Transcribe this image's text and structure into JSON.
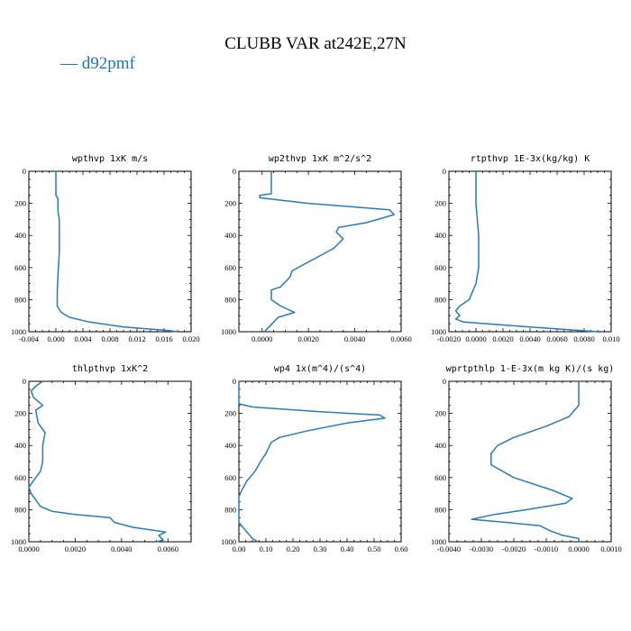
{
  "header": {
    "title": "CLUBB VAR at242E,27N",
    "legend_label": "— d92pmf",
    "legend_color": "#2a7ab5"
  },
  "chart_data": [
    {
      "type": "line",
      "title": "wpthvp  1xK m/s",
      "series": [
        {
          "name": "d92pmf",
          "points": [
            [
              0,
              0
            ],
            [
              0,
              150
            ],
            [
              0.0003,
              170
            ],
            [
              0.0003,
              250
            ],
            [
              0.0005,
              300
            ],
            [
              0.0005,
              400
            ],
            [
              0.0005,
              500
            ],
            [
              0.0003,
              650
            ],
            [
              0.0002,
              750
            ],
            [
              0.0002,
              840
            ],
            [
              0.0008,
              880
            ],
            [
              0.002,
              910
            ],
            [
              0.005,
              940
            ],
            [
              0.01,
              970
            ],
            [
              0.016,
              990
            ],
            [
              0.018,
              1000
            ]
          ]
        }
      ],
      "xlim": [
        -0.004,
        0.02
      ],
      "ylim": [
        1000,
        0
      ],
      "xticks": [
        -0.004,
        0.0,
        0.004,
        0.008,
        0.012,
        0.016,
        0.02
      ],
      "xtick_labels": [
        "-0.004",
        "0.000",
        "0.004",
        "0.008",
        "0.012",
        "0.016",
        "0.020"
      ],
      "yticks": [
        0,
        200,
        400,
        600,
        800,
        1000
      ],
      "ytick_labels": [
        "0",
        "200",
        "400",
        "600",
        "800",
        "1000"
      ]
    },
    {
      "type": "line",
      "title": "wp2thvp  1xK m^2/s^2",
      "series": [
        {
          "name": "d92pmf",
          "points": [
            [
              0.0004,
              0
            ],
            [
              0.0004,
              140
            ],
            [
              -0.0001,
              150
            ],
            [
              -0.0001,
              165
            ],
            [
              0.002,
              200
            ],
            [
              0.0055,
              240
            ],
            [
              0.0057,
              270
            ],
            [
              0.0045,
              320
            ],
            [
              0.0033,
              350
            ],
            [
              0.0032,
              380
            ],
            [
              0.0035,
              420
            ],
            [
              0.0031,
              480
            ],
            [
              0.0022,
              550
            ],
            [
              0.0013,
              620
            ],
            [
              0.0012,
              660
            ],
            [
              0.0008,
              720
            ],
            [
              0.0004,
              740
            ],
            [
              0.0004,
              800
            ],
            [
              0.0008,
              840
            ],
            [
              0.0014,
              880
            ],
            [
              0.0007,
              910
            ],
            [
              0.0003,
              970
            ],
            [
              0.0001,
              1000
            ]
          ]
        }
      ],
      "xlim": [
        -0.001,
        0.006
      ],
      "ylim": [
        1000,
        0
      ],
      "xticks": [
        0.0,
        0.002,
        0.004,
        0.006
      ],
      "xtick_labels": [
        "0.0000",
        "0.0020",
        "0.0040",
        "0.0060"
      ],
      "yticks": [
        0,
        200,
        400,
        600,
        800,
        1000
      ],
      "ytick_labels": [
        "0",
        "200",
        "400",
        "600",
        "800",
        "1000"
      ]
    },
    {
      "type": "line",
      "title": "rtpthvp  1E-3x(kg/kg) K",
      "series": [
        {
          "name": "d92pmf",
          "points": [
            [
              0,
              0
            ],
            [
              0,
              200
            ],
            [
              0.0002,
              400
            ],
            [
              0.0002,
              600
            ],
            [
              0,
              700
            ],
            [
              -0.0005,
              800
            ],
            [
              -0.0012,
              840
            ],
            [
              -0.0015,
              870
            ],
            [
              -0.0012,
              900
            ],
            [
              -0.0015,
              920
            ],
            [
              -0.0009,
              940
            ],
            [
              0.004,
              970
            ],
            [
              0.009,
              1000
            ]
          ]
        }
      ],
      "xlim": [
        -0.002,
        0.01
      ],
      "ylim": [
        1000,
        0
      ],
      "xticks": [
        -0.002,
        0.0,
        0.002,
        0.004,
        0.006,
        0.008,
        0.01
      ],
      "xtick_labels": [
        "-0.0020",
        "0.0000",
        "0.0020",
        "0.0040",
        "0.0060",
        "0.0080",
        "0.010"
      ],
      "yticks": [
        0,
        200,
        400,
        600,
        800,
        1000
      ],
      "ytick_labels": [
        "0",
        "200",
        "400",
        "600",
        "800",
        "1000"
      ]
    },
    {
      "type": "line",
      "title": "thlpthvp  1xK^2",
      "series": [
        {
          "name": "d92pmf",
          "points": [
            [
              0.0006,
              0
            ],
            [
              0.0003,
              30
            ],
            [
              0.0001,
              60
            ],
            [
              0.0002,
              100
            ],
            [
              0.0006,
              150
            ],
            [
              0.0003,
              180
            ],
            [
              0.0004,
              260
            ],
            [
              0.0007,
              320
            ],
            [
              0.0006,
              400
            ],
            [
              0.0006,
              500
            ],
            [
              0.0005,
              560
            ],
            [
              0.0002,
              620
            ],
            [
              0,
              660
            ],
            [
              0.0001,
              700
            ],
            [
              0.0005,
              780
            ],
            [
              0.001,
              810
            ],
            [
              0.002,
              830
            ],
            [
              0.0035,
              850
            ],
            [
              0.0037,
              880
            ],
            [
              0.0045,
              910
            ],
            [
              0.0059,
              940
            ],
            [
              0.0056,
              960
            ],
            [
              0.0058,
              990
            ],
            [
              0.0055,
              1000
            ]
          ]
        }
      ],
      "xlim": [
        0.0,
        0.007
      ],
      "ylim": [
        1000,
        0
      ],
      "xticks": [
        0.0,
        0.002,
        0.004,
        0.006
      ],
      "xtick_labels": [
        "0.0000",
        "0.0020",
        "0.0040",
        "0.0060"
      ],
      "yticks": [
        0,
        200,
        400,
        600,
        800,
        1000
      ],
      "ytick_labels": [
        "0",
        "200",
        "400",
        "600",
        "800",
        "1000"
      ]
    },
    {
      "type": "line",
      "title": "wp4  1x(m^4)/(s^4)",
      "series": [
        {
          "name": "d92pmf",
          "points": [
            [
              0,
              0
            ],
            [
              0,
              140
            ],
            [
              0.05,
              160
            ],
            [
              0.3,
              190
            ],
            [
              0.52,
              210
            ],
            [
              0.54,
              230
            ],
            [
              0.4,
              260
            ],
            [
              0.25,
              310
            ],
            [
              0.15,
              350
            ],
            [
              0.12,
              380
            ],
            [
              0.1,
              450
            ],
            [
              0.08,
              500
            ],
            [
              0.06,
              560
            ],
            [
              0.03,
              620
            ],
            [
              0.01,
              680
            ],
            [
              0,
              720
            ],
            [
              0,
              800
            ],
            [
              0,
              880
            ],
            [
              0.03,
              940
            ],
            [
              0.05,
              980
            ],
            [
              0.07,
              1000
            ]
          ]
        }
      ],
      "xlim": [
        0.0,
        0.6
      ],
      "ylim": [
        1000,
        0
      ],
      "xticks": [
        0.0,
        0.1,
        0.2,
        0.3,
        0.4,
        0.5,
        0.6
      ],
      "xtick_labels": [
        "0.00",
        "0.10",
        "0.20",
        "0.30",
        "0.40",
        "0.50",
        "0.60"
      ],
      "yticks": [
        0,
        200,
        400,
        600,
        800,
        1000
      ],
      "ytick_labels": [
        "0",
        "200",
        "400",
        "600",
        "800",
        "1000"
      ]
    },
    {
      "type": "line",
      "title": "wprtpthlp  1-E-3x(m kg K)/(s kg)",
      "series": [
        {
          "name": "d92pmf",
          "points": [
            [
              0,
              0
            ],
            [
              0,
              150
            ],
            [
              -0.0003,
              220
            ],
            [
              -0.001,
              280
            ],
            [
              -0.002,
              350
            ],
            [
              -0.0025,
              400
            ],
            [
              -0.0027,
              450
            ],
            [
              -0.0027,
              520
            ],
            [
              -0.002,
              600
            ],
            [
              -0.0008,
              680
            ],
            [
              -0.0002,
              730
            ],
            [
              -0.0004,
              760
            ],
            [
              -0.0016,
              800
            ],
            [
              -0.0026,
              830
            ],
            [
              -0.0033,
              860
            ],
            [
              -0.0022,
              880
            ],
            [
              -0.0012,
              900
            ],
            [
              -0.0009,
              930
            ],
            [
              -0.0005,
              960
            ],
            [
              0,
              980
            ],
            [
              0,
              1000
            ]
          ]
        }
      ],
      "xlim": [
        -0.004,
        0.001
      ],
      "ylim": [
        1000,
        0
      ],
      "xticks": [
        -0.004,
        -0.003,
        -0.002,
        -0.001,
        0.0,
        0.001
      ],
      "xtick_labels": [
        "-0.0040",
        "-0.0030",
        "-0.0020",
        "-0.0010",
        "0.0000",
        "0.0010"
      ],
      "yticks": [
        0,
        200,
        400,
        600,
        800,
        1000
      ],
      "ytick_labels": [
        "0",
        "200",
        "400",
        "600",
        "800",
        "1000"
      ]
    }
  ]
}
